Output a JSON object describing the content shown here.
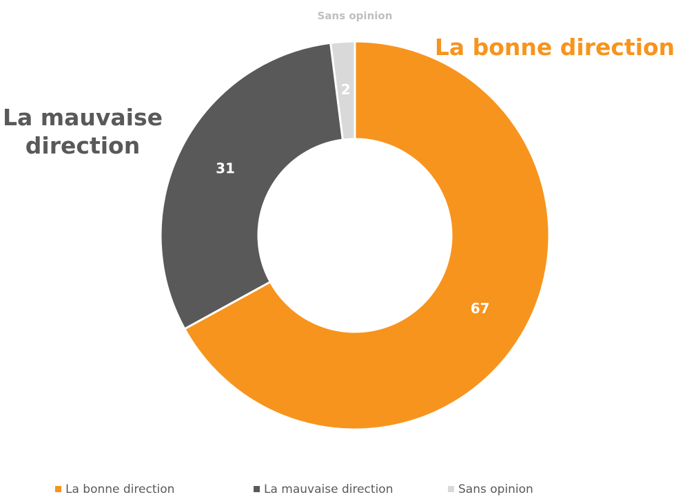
{
  "chart_data": {
    "type": "donut",
    "categories": [
      "La bonne direction",
      "La mauvaise direction",
      "Sans opinion"
    ],
    "values": [
      67,
      31,
      2
    ],
    "colors": [
      "#f7941d",
      "#595959",
      "#d9d9d9"
    ],
    "legend": "bottom"
  }
}
